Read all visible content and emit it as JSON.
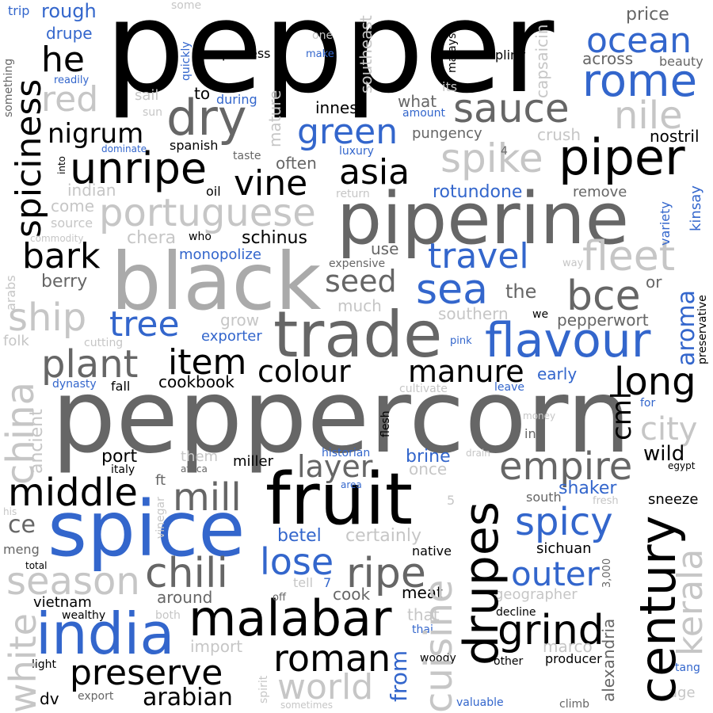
{
  "colors": {
    "black": "#000000",
    "dark_gray": "#666666",
    "gray": "#aaaaaa",
    "light_gray": "#c6c6c6",
    "blue": "#3366cc",
    "background": "#ffffff"
  },
  "words": {
    "pepper": "pepper",
    "peppercorn": "peppercorn",
    "piperine": "piperine",
    "black": "black",
    "spice": "spice",
    "fruit": "fruit",
    "trade": "trade",
    "india": "india",
    "malabar": "malabar",
    "drupes": "drupes",
    "century": "century",
    "cuisine": "cuisine",
    "flavour": "flavour",
    "piper": "piper",
    "dry": "dry",
    "unripe": "unripe",
    "portuguese": "portuguese",
    "sauce": "sauce",
    "rome": "rome",
    "ocean": "ocean",
    "nile": "nile",
    "spike": "spike",
    "green": "green",
    "asia": "asia",
    "vine": "vine",
    "spiciness": "spiciness",
    "he": "he",
    "red": "red",
    "nigrum": "nigrum",
    "bark": "bark",
    "travel": "travel",
    "sea": "sea",
    "fleet": "fleet",
    "bce": "bce",
    "seed": "seed",
    "ship": "ship",
    "tree": "tree",
    "plant": "plant",
    "item": "item",
    "colour": "colour",
    "manure": "manure",
    "long": "long",
    "aroma": "aroma",
    "china": "china",
    "empire": "empire",
    "layer": "layer",
    "middle": "middle",
    "mill": "mill",
    "chili": "chili",
    "ripe": "ripe",
    "lose": "lose",
    "spicy": "spicy",
    "outer": "outer",
    "season": "season",
    "grind": "grind",
    "roman": "roman",
    "preserve": "preserve",
    "world": "world",
    "arabian": "arabian",
    "white": "white",
    "kerala": "kerala",
    "city": "city",
    "cml": "cml",
    "wild": "wild",
    "port": "port",
    "berry": "berry",
    "schinus": "schinus",
    "monopolize": "monopolize",
    "chera": "chera",
    "source": "source",
    "come": "come",
    "indian": "indian",
    "oil": "oil",
    "often": "often",
    "spanish": "spanish",
    "taste": "taste",
    "rotundone": "rotundone",
    "remove": "remove",
    "return": "return",
    "pungency": "pungency",
    "crush": "crush",
    "nostril": "nostril",
    "innes": "innes",
    "what": "what",
    "amount": "amount",
    "luxury": "luxury",
    "dominate": "dominate",
    "during": "during",
    "to": "to",
    "sail": "sail",
    "sun": "sun",
    "process": "process",
    "make": "make",
    "one": "one",
    "some": "some",
    "rough": "rough",
    "trip": "trip",
    "drupe": "drupe",
    "readily": "readily",
    "quickly": "quickly",
    "mature": "mature",
    "southeast": "southeast",
    "malaysia": "malaysia",
    "its": "its",
    "capsaicin": "capsaicin",
    "price": "price",
    "pliny": "pliny",
    "across": "across",
    "beauty": "beauty",
    "something": "something",
    "into": "into",
    "commodity": "commodity",
    "who": "who",
    "expensive": "expensive",
    "use": "use",
    "much": "much",
    "southern": "southern",
    "the": "the",
    "we": "we",
    "pepperwort": "pepperwort",
    "or": "or",
    "way": "way",
    "preservative": "preservative",
    "variety": "variety",
    "kinsay": "kinsay",
    "4": "4",
    "grow": "grow",
    "exporter": "exporter",
    "cutting": "cutting",
    "folk": "folk",
    "arabs": "arabs",
    "pink": "pink",
    "early": "early",
    "leave": "leave",
    "cultivate": "cultivate",
    "fall": "fall",
    "dynasty": "dynasty",
    "cookbook": "cookbook",
    "flesh": "flesh",
    "money": "money",
    "in": "in",
    "for": "for",
    "brine": "brine",
    "historian": "historian",
    "once": "once",
    "drain": "drain",
    "area": "area",
    "miller": "miller",
    "them": "them",
    "africa": "africa",
    "ft": "ft",
    "italy": "italy",
    "egypt": "egypt",
    "ancient": "ancient",
    "shaker": "shaker",
    "south": "south",
    "5": "5",
    "fresh": "fresh",
    "sneeze": "sneeze",
    "ce": "ce",
    "his": "his",
    "vinegar": "vinegar",
    "meng": "meng",
    "total": "total",
    "betel": "betel",
    "certainly": "certainly",
    "native": "native",
    "sichuan": "sichuan",
    "3,000": "3,000",
    "alexandria": "alexandria",
    "tell": "tell",
    "7": "7",
    "cook": "cook",
    "meat": "meat",
    "geographer": "geographer",
    "around": "around",
    "vietnam": "vietnam",
    "wealthy": "wealthy",
    "both": "both",
    "off": "off",
    "that": "that",
    "thai": "thai",
    "decline": "decline",
    "marco": "marco",
    "import": "import",
    "spirit": "spirit",
    "light": "light",
    "export": "export",
    "dv": "dv",
    "sometimes": "sometimes",
    "from": "from",
    "woody": "woody",
    "other": "other",
    "producer": "producer",
    "valuable": "valuable",
    "climb": "climb",
    "tang": "tang",
    "age": "age"
  }
}
